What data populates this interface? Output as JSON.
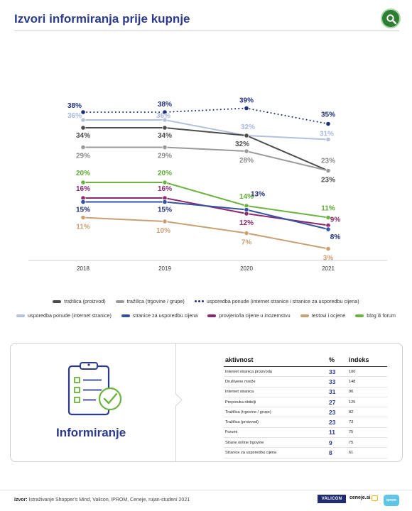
{
  "header": {
    "title": "Izvori informiranja prije kupnje",
    "search_icon": "search-icon"
  },
  "chart_data": {
    "type": "line",
    "categories": [
      "2018",
      "2019",
      "2020",
      "2021"
    ],
    "ylim": [
      0,
      40
    ],
    "grid": false,
    "legend_position": "bottom",
    "series": [
      {
        "name": "usporedba ponude (internet stranice i stranice za usporedbu cijena)",
        "values": [
          38,
          38,
          39,
          35
        ],
        "color": "#1e2f7a",
        "dotted": true,
        "labels": [
          "38%",
          "38%",
          "39%",
          "35%"
        ],
        "label_color": "#1e2f7a"
      },
      {
        "name": "usporedba ponude (internet stranice)",
        "values": [
          36,
          36,
          32,
          31
        ],
        "color": "#b3c1dd",
        "labels": [
          "36%",
          "36%",
          "32%",
          "31%"
        ],
        "label_color": "#a8b9db"
      },
      {
        "name": "tražilica (proizvod)",
        "values": [
          34,
          34,
          32,
          23
        ],
        "color": "#4d4d4d",
        "labels": [
          "34%",
          "34%",
          "32%",
          "23%"
        ],
        "label_color": "#4d4d4d"
      },
      {
        "name": "tražilica (trgovine / grupe)",
        "values": [
          29,
          29,
          28,
          23
        ],
        "color": "#9a9a9a",
        "labels": [
          "29%",
          "29%",
          "28%",
          "23%"
        ],
        "label_color": "#8a8a8a"
      },
      {
        "name": "blog ili forum",
        "values": [
          20,
          20,
          14,
          11
        ],
        "color": "#6cb33f",
        "labels": [
          "20%",
          "20%",
          "14%",
          "11%"
        ],
        "label_color": "#5fa935"
      },
      {
        "name": "provjerio/la cijene u inozemstvu",
        "values": [
          16,
          16,
          12,
          9
        ],
        "color": "#8b2a6e",
        "labels": [
          "16%",
          "16%",
          "12%",
          "9%"
        ],
        "label_color": "#8b2a6e"
      },
      {
        "name": "stranice za usporedbu cijena",
        "values": [
          15,
          15,
          13,
          8
        ],
        "color": "#33529f",
        "labels": [
          "15%",
          "15%",
          "13%",
          "8%"
        ],
        "label_color": "#1e2f7a"
      },
      {
        "name": "testovi i ocjene",
        "values": [
          11,
          10,
          7,
          3
        ],
        "color": "#c8a074",
        "labels": [
          "11%",
          "10%",
          "7%",
          "3%"
        ],
        "label_color": "#c8a074"
      }
    ]
  },
  "legend": {
    "row1": [
      {
        "label": "tražilica (proizvod)",
        "color": "#4d4d4d",
        "style": "solid"
      },
      {
        "label": "tražilica (trgovine / grupe)",
        "color": "#9a9a9a",
        "style": "solid"
      },
      {
        "label": "usporedba ponude (internet stranice i stranice za usporedbu cijena)",
        "color": "#1e2f7a",
        "style": "dotted"
      }
    ],
    "row2": [
      {
        "label": "usporedba ponude (internet stranice)",
        "color": "#b3c1dd",
        "style": "solid"
      },
      {
        "label": "stranice za usporedbu cijena",
        "color": "#33529f",
        "style": "solid"
      },
      {
        "label": "provjerio/la cijene u inozemstvu",
        "color": "#8b2a6e",
        "style": "solid"
      },
      {
        "label": "testovi i ocjene",
        "color": "#c8a074",
        "style": "solid"
      },
      {
        "label": "blog ili forum",
        "color": "#6cb33f",
        "style": "solid"
      }
    ]
  },
  "panel": {
    "label": "Informiranje",
    "icon": "clipboard-checklist-icon",
    "table": {
      "headers": {
        "activity": "aktivnost",
        "percent": "%",
        "index": "indeks"
      },
      "rows": [
        {
          "activity": "Internet stranica proizvoda",
          "percent": "33",
          "index": "100"
        },
        {
          "activity": "Društvene mreže",
          "percent": "33",
          "index": "148"
        },
        {
          "activity": "Internet stranica",
          "percent": "31",
          "index": "96"
        },
        {
          "activity": "Preporuka obitelji",
          "percent": "27",
          "index": "125"
        },
        {
          "activity": "Tražilica (trgovine / grupe)",
          "percent": "23",
          "index": "82"
        },
        {
          "activity": "Tražilica (proizvod)",
          "percent": "23",
          "index": "73"
        },
        {
          "activity": "Forumi",
          "percent": "11",
          "index": "75"
        },
        {
          "activity": "Strane online trgovine",
          "percent": "9",
          "index": "75"
        },
        {
          "activity": "Stranice za usporedbu cijena",
          "percent": "8",
          "index": "61"
        }
      ]
    }
  },
  "footer": {
    "source_label": "Izvor:",
    "source_text": "Istraživanje Shopper's Mind, Valicon, iPROM, Ceneje, rujan-studeni 2021",
    "logo_valicon": "VALICON",
    "logo_ceneje": "ceneje.si",
    "logo_iprom": "iprom"
  },
  "colors": {
    "title": "#2b3a8c",
    "accent_green": "#2e7d32"
  }
}
